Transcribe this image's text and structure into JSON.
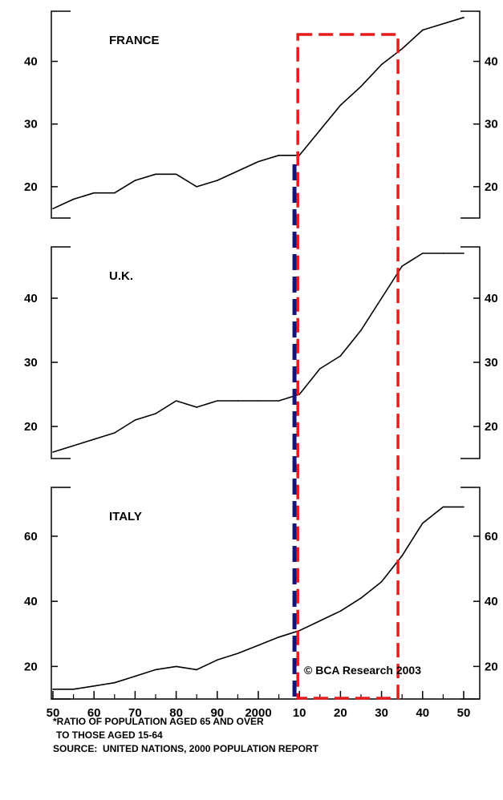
{
  "chart_data": [
    {
      "type": "line",
      "panel": "france",
      "title": "FRANCE",
      "ylim": [
        15,
        48
      ],
      "yticks": [
        20,
        30,
        40
      ],
      "x": [
        1950,
        1955,
        1960,
        1965,
        1970,
        1975,
        1980,
        1985,
        1990,
        1995,
        2000,
        2005,
        2010,
        2015,
        2020,
        2025,
        2030,
        2035,
        2040,
        2045,
        2050
      ],
      "series": [
        {
          "values": [
            16.5,
            18,
            19,
            19,
            21,
            22,
            22,
            20,
            21,
            22.5,
            24,
            25,
            25,
            29,
            33,
            36,
            39.5,
            42,
            45,
            46,
            47
          ]
        }
      ]
    },
    {
      "type": "line",
      "panel": "uk",
      "title": "U.K.",
      "ylim": [
        15,
        48
      ],
      "yticks": [
        20,
        30,
        40
      ],
      "x": [
        1950,
        1955,
        1960,
        1965,
        1970,
        1975,
        1980,
        1985,
        1990,
        1995,
        2000,
        2005,
        2010,
        2015,
        2020,
        2025,
        2030,
        2035,
        2040,
        2045,
        2050
      ],
      "series": [
        {
          "values": [
            16,
            17,
            18,
            19,
            21,
            22,
            24,
            23,
            24,
            24,
            24,
            24,
            25,
            29,
            31,
            35,
            40,
            45,
            47,
            47,
            47
          ]
        }
      ]
    },
    {
      "type": "line",
      "panel": "italy",
      "title": "ITALY",
      "ylim": [
        10,
        75
      ],
      "yticks": [
        20,
        40,
        60
      ],
      "x": [
        1950,
        1955,
        1960,
        1965,
        1970,
        1975,
        1980,
        1985,
        1990,
        1995,
        2000,
        2005,
        2010,
        2015,
        2020,
        2025,
        2030,
        2035,
        2040,
        2045,
        2050
      ],
      "series": [
        {
          "values": [
            13,
            13,
            14,
            15,
            17,
            19,
            20,
            19,
            22,
            24,
            26.5,
            29,
            31,
            34,
            37,
            41,
            46,
            54,
            64,
            69,
            69
          ]
        }
      ]
    }
  ],
  "x_axis": {
    "tick_labels": [
      "50",
      "60",
      "70",
      "80",
      "90",
      "2000",
      "10",
      "20",
      "30",
      "40",
      "50"
    ],
    "tick_years": [
      1950,
      1960,
      1970,
      1980,
      1990,
      2000,
      2010,
      2020,
      2030,
      2040,
      2050
    ],
    "minor_years": [
      1955,
      1965,
      1975,
      1985,
      1995,
      2005,
      2015,
      2025,
      2035,
      2045
    ]
  },
  "annotations": {
    "credit": "© BCA Research 2003",
    "blue_line_year": 2009,
    "red_box_years": [
      2010,
      2034
    ],
    "blue_color": "#14147a",
    "red_color": "#e81c1c"
  },
  "footnote": {
    "line1": "*RATIO OF POPULATION AGED 65 AND OVER",
    "line2": "TO THOSE AGED 15-64",
    "line3": "SOURCE:  UNITED NATIONS, 2000 POPULATION REPORT"
  }
}
